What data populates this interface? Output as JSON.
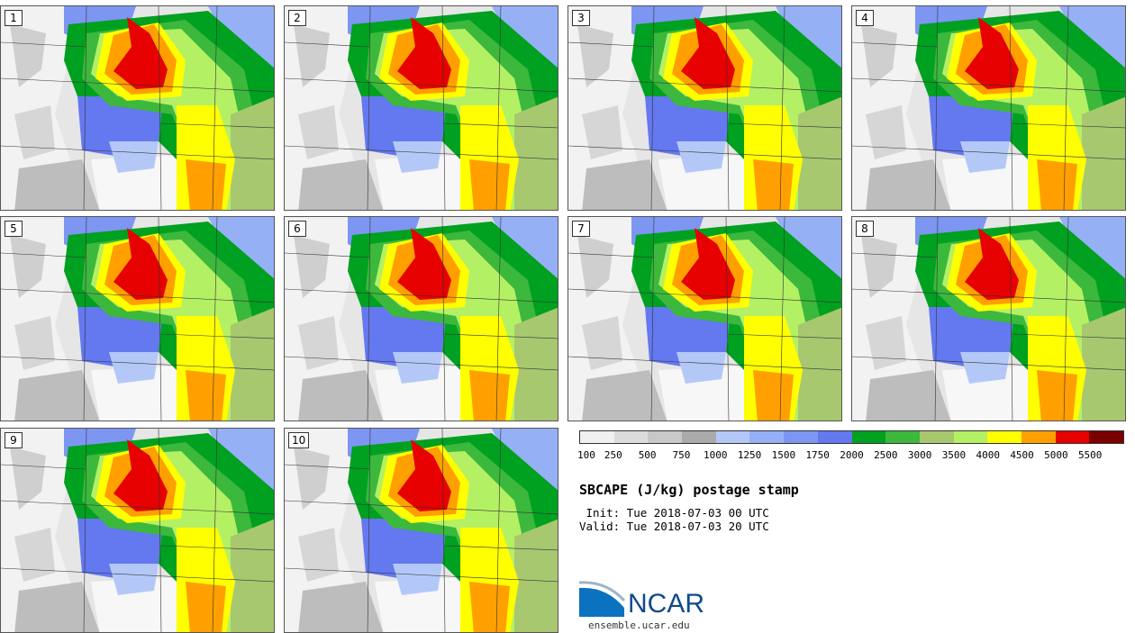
{
  "panels": [
    {
      "label": "1"
    },
    {
      "label": "2"
    },
    {
      "label": "3"
    },
    {
      "label": "4"
    },
    {
      "label": "5"
    },
    {
      "label": "6"
    },
    {
      "label": "7"
    },
    {
      "label": "8"
    },
    {
      "label": "9"
    },
    {
      "label": "10"
    }
  ],
  "legend": {
    "colors": [
      "#f0f0f0",
      "#dcdcdc",
      "#c8c8c8",
      "#aaaaaa",
      "#b4c8f8",
      "#96b0f5",
      "#7d96f2",
      "#6478ef",
      "#00a020",
      "#3cb83c",
      "#a8c870",
      "#b4f064",
      "#ffff00",
      "#ffa000",
      "#e60000",
      "#7a0000"
    ],
    "ticks": [
      "100",
      "250",
      "500",
      "750",
      "1000",
      "1250",
      "1500",
      "1750",
      "2000",
      "2500",
      "3000",
      "3500",
      "4000",
      "4500",
      "5000",
      "5500"
    ]
  },
  "title": "SBCAPE (J/kg) postage stamp",
  "init": " Init: Tue 2018-07-03 00 UTC",
  "valid": "Valid: Tue 2018-07-03 20 UTC",
  "logo_text": "NCAR",
  "url": "ensemble.ucar.edu"
}
